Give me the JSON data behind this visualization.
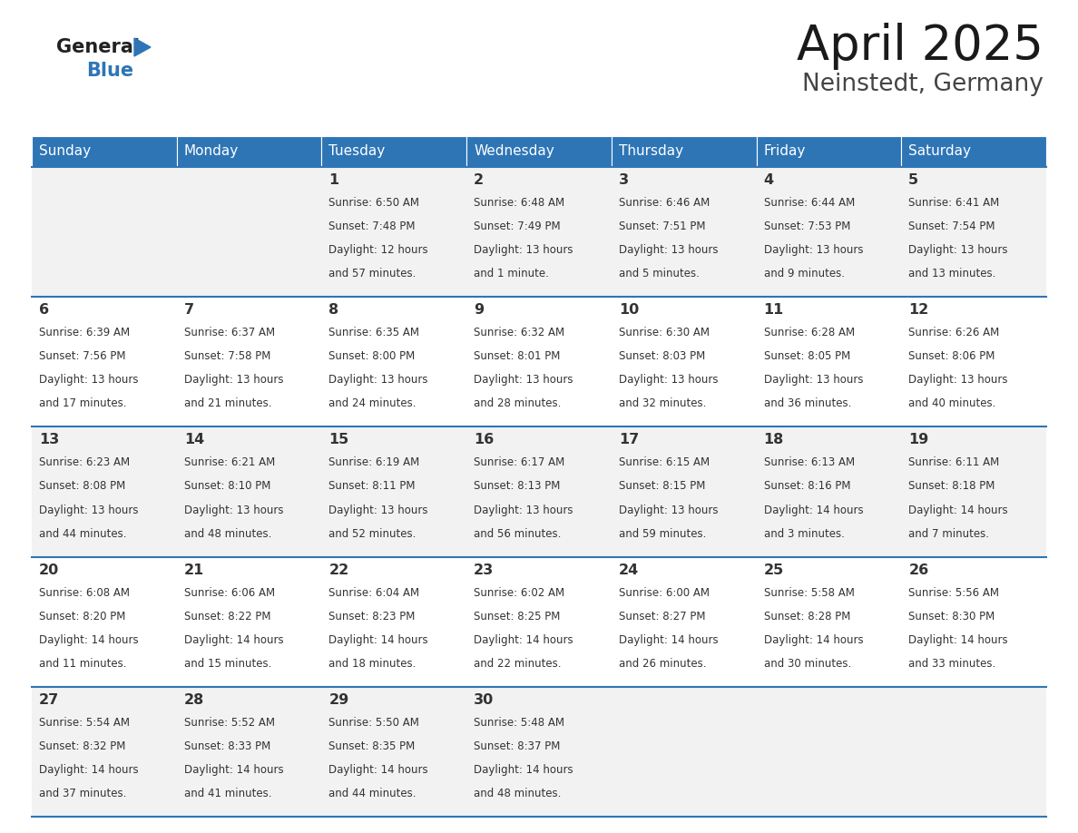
{
  "title": "April 2025",
  "subtitle": "Neinstedt, Germany",
  "header_bg": "#2E75B6",
  "header_text_color": "#FFFFFF",
  "days_of_week": [
    "Sunday",
    "Monday",
    "Tuesday",
    "Wednesday",
    "Thursday",
    "Friday",
    "Saturday"
  ],
  "row_bg_even": "#F2F2F2",
  "row_bg_odd": "#FFFFFF",
  "divider_color": "#2E75B6",
  "text_color": "#333333",
  "logo_general_color": "#222222",
  "logo_blue_color": "#2E75B6",
  "calendar": [
    [
      {
        "day": "",
        "sunrise": "",
        "sunset": "",
        "daylight": ""
      },
      {
        "day": "",
        "sunrise": "",
        "sunset": "",
        "daylight": ""
      },
      {
        "day": "1",
        "sunrise": "6:50 AM",
        "sunset": "7:48 PM",
        "daylight": "12 hours\nand 57 minutes."
      },
      {
        "day": "2",
        "sunrise": "6:48 AM",
        "sunset": "7:49 PM",
        "daylight": "13 hours\nand 1 minute."
      },
      {
        "day": "3",
        "sunrise": "6:46 AM",
        "sunset": "7:51 PM",
        "daylight": "13 hours\nand 5 minutes."
      },
      {
        "day": "4",
        "sunrise": "6:44 AM",
        "sunset": "7:53 PM",
        "daylight": "13 hours\nand 9 minutes."
      },
      {
        "day": "5",
        "sunrise": "6:41 AM",
        "sunset": "7:54 PM",
        "daylight": "13 hours\nand 13 minutes."
      }
    ],
    [
      {
        "day": "6",
        "sunrise": "6:39 AM",
        "sunset": "7:56 PM",
        "daylight": "13 hours\nand 17 minutes."
      },
      {
        "day": "7",
        "sunrise": "6:37 AM",
        "sunset": "7:58 PM",
        "daylight": "13 hours\nand 21 minutes."
      },
      {
        "day": "8",
        "sunrise": "6:35 AM",
        "sunset": "8:00 PM",
        "daylight": "13 hours\nand 24 minutes."
      },
      {
        "day": "9",
        "sunrise": "6:32 AM",
        "sunset": "8:01 PM",
        "daylight": "13 hours\nand 28 minutes."
      },
      {
        "day": "10",
        "sunrise": "6:30 AM",
        "sunset": "8:03 PM",
        "daylight": "13 hours\nand 32 minutes."
      },
      {
        "day": "11",
        "sunrise": "6:28 AM",
        "sunset": "8:05 PM",
        "daylight": "13 hours\nand 36 minutes."
      },
      {
        "day": "12",
        "sunrise": "6:26 AM",
        "sunset": "8:06 PM",
        "daylight": "13 hours\nand 40 minutes."
      }
    ],
    [
      {
        "day": "13",
        "sunrise": "6:23 AM",
        "sunset": "8:08 PM",
        "daylight": "13 hours\nand 44 minutes."
      },
      {
        "day": "14",
        "sunrise": "6:21 AM",
        "sunset": "8:10 PM",
        "daylight": "13 hours\nand 48 minutes."
      },
      {
        "day": "15",
        "sunrise": "6:19 AM",
        "sunset": "8:11 PM",
        "daylight": "13 hours\nand 52 minutes."
      },
      {
        "day": "16",
        "sunrise": "6:17 AM",
        "sunset": "8:13 PM",
        "daylight": "13 hours\nand 56 minutes."
      },
      {
        "day": "17",
        "sunrise": "6:15 AM",
        "sunset": "8:15 PM",
        "daylight": "13 hours\nand 59 minutes."
      },
      {
        "day": "18",
        "sunrise": "6:13 AM",
        "sunset": "8:16 PM",
        "daylight": "14 hours\nand 3 minutes."
      },
      {
        "day": "19",
        "sunrise": "6:11 AM",
        "sunset": "8:18 PM",
        "daylight": "14 hours\nand 7 minutes."
      }
    ],
    [
      {
        "day": "20",
        "sunrise": "6:08 AM",
        "sunset": "8:20 PM",
        "daylight": "14 hours\nand 11 minutes."
      },
      {
        "day": "21",
        "sunrise": "6:06 AM",
        "sunset": "8:22 PM",
        "daylight": "14 hours\nand 15 minutes."
      },
      {
        "day": "22",
        "sunrise": "6:04 AM",
        "sunset": "8:23 PM",
        "daylight": "14 hours\nand 18 minutes."
      },
      {
        "day": "23",
        "sunrise": "6:02 AM",
        "sunset": "8:25 PM",
        "daylight": "14 hours\nand 22 minutes."
      },
      {
        "day": "24",
        "sunrise": "6:00 AM",
        "sunset": "8:27 PM",
        "daylight": "14 hours\nand 26 minutes."
      },
      {
        "day": "25",
        "sunrise": "5:58 AM",
        "sunset": "8:28 PM",
        "daylight": "14 hours\nand 30 minutes."
      },
      {
        "day": "26",
        "sunrise": "5:56 AM",
        "sunset": "8:30 PM",
        "daylight": "14 hours\nand 33 minutes."
      }
    ],
    [
      {
        "day": "27",
        "sunrise": "5:54 AM",
        "sunset": "8:32 PM",
        "daylight": "14 hours\nand 37 minutes."
      },
      {
        "day": "28",
        "sunrise": "5:52 AM",
        "sunset": "8:33 PM",
        "daylight": "14 hours\nand 41 minutes."
      },
      {
        "day": "29",
        "sunrise": "5:50 AM",
        "sunset": "8:35 PM",
        "daylight": "14 hours\nand 44 minutes."
      },
      {
        "day": "30",
        "sunrise": "5:48 AM",
        "sunset": "8:37 PM",
        "daylight": "14 hours\nand 48 minutes."
      },
      {
        "day": "",
        "sunrise": "",
        "sunset": "",
        "daylight": ""
      },
      {
        "day": "",
        "sunrise": "",
        "sunset": "",
        "daylight": ""
      },
      {
        "day": "",
        "sunrise": "",
        "sunset": "",
        "daylight": ""
      }
    ]
  ]
}
